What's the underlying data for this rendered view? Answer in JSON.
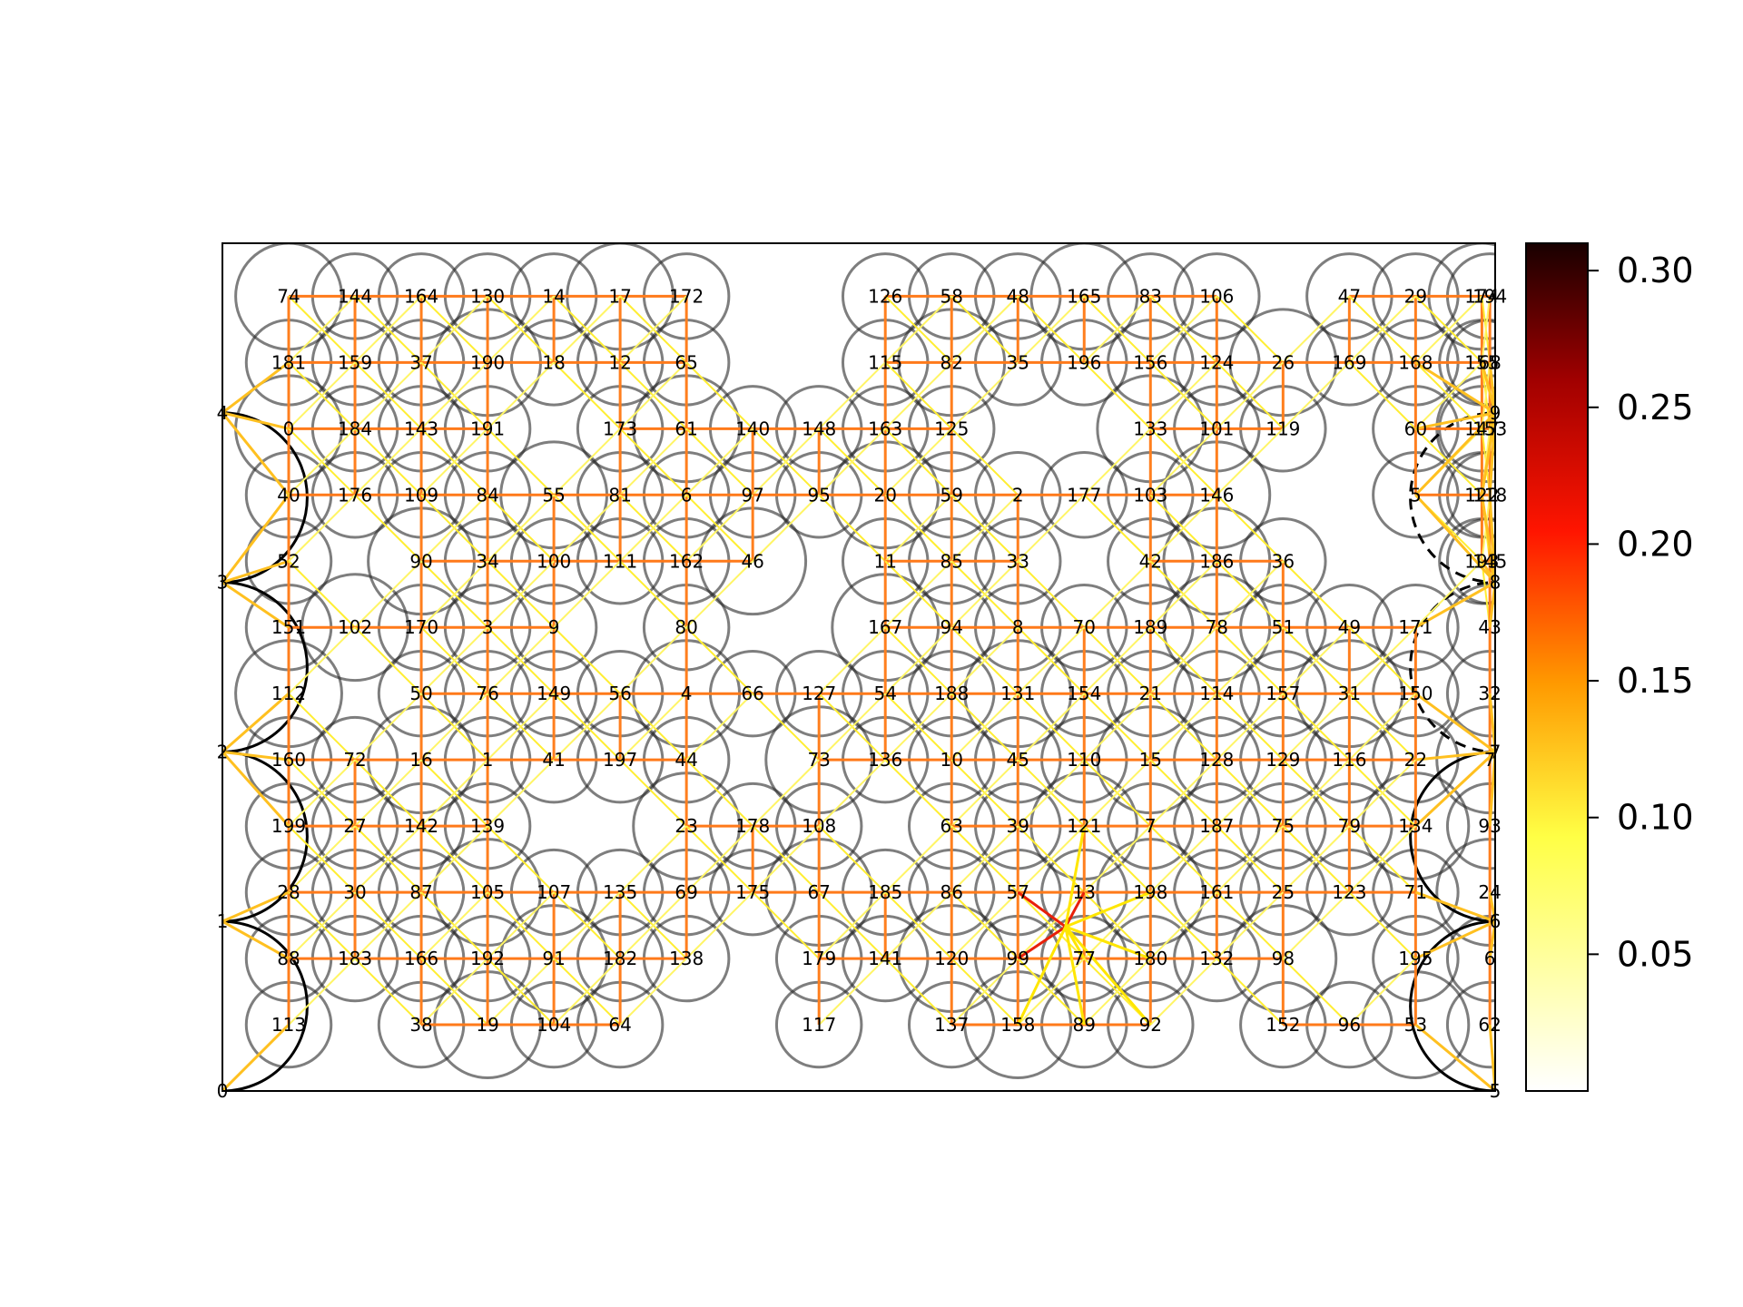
{
  "title": "",
  "colorbar": {
    "range": [
      0.0,
      0.31
    ],
    "ticks": [
      {
        "value": 0.05,
        "label": "0.05"
      },
      {
        "value": 0.1,
        "label": "0.10"
      },
      {
        "value": 0.15,
        "label": "0.15"
      },
      {
        "value": 0.2,
        "label": "0.20"
      },
      {
        "value": 0.25,
        "label": "0.25"
      },
      {
        "value": 0.3,
        "label": "0.30"
      }
    ],
    "colormap": "afmhot_r"
  },
  "grid": {
    "columns": [
      0.0,
      0.25,
      0.5,
      0.75,
      1.0,
      1.25,
      1.5,
      1.75,
      2.0,
      2.25,
      2.5,
      2.75,
      3.0,
      3.25,
      3.5,
      3.75,
      4.0,
      4.25,
      4.5,
      4.75
    ],
    "rows": [
      0.0,
      0.25,
      0.5,
      0.75,
      1.0,
      1.25,
      1.5,
      1.75,
      2.0,
      2.25,
      2.5,
      2.75,
      3.0
    ],
    "boundary_x_max": 4.8,
    "boundary_y_max": 3.2
  },
  "boundary_nodes": [
    {
      "id": "0",
      "x": 0.0,
      "y": 0.0
    },
    {
      "id": "1",
      "x": 0.0,
      "y": 0.64
    },
    {
      "id": "2",
      "x": 0.0,
      "y": 1.28
    },
    {
      "id": "3",
      "x": 0.0,
      "y": 1.92
    },
    {
      "id": "4",
      "x": 0.0,
      "y": 2.56
    },
    {
      "id": "5",
      "x": 4.8,
      "y": 0.0
    },
    {
      "id": "6",
      "x": 4.8,
      "y": 0.64
    },
    {
      "id": "7",
      "x": 4.8,
      "y": 1.28
    },
    {
      "id": "8",
      "x": 4.8,
      "y": 1.92
    },
    {
      "id": "9",
      "x": 4.8,
      "y": 2.56
    }
  ],
  "node_rows": [
    {
      "y": 3.0,
      "labels": [
        "74",
        "144",
        "164",
        "130",
        "14",
        "17",
        "172",
        "",
        "",
        "126",
        "58",
        "48",
        "165",
        "83",
        "106",
        "",
        "47",
        "29",
        "174",
        "194"
      ]
    },
    {
      "y": 2.75,
      "labels": [
        "181",
        "159",
        "37",
        "190",
        "18",
        "12",
        "65",
        "",
        "",
        "115",
        "82",
        "35",
        "196",
        "156",
        "124",
        "26",
        "169",
        "168",
        "155",
        "68"
      ]
    },
    {
      "y": 2.5,
      "labels": [
        "0",
        "184",
        "143",
        "191",
        "",
        "173",
        "61",
        "140",
        "148",
        "163",
        "125",
        "",
        "",
        "133",
        "101",
        "119",
        "",
        "60",
        "147",
        "153"
      ]
    },
    {
      "y": 2.25,
      "labels": [
        "40",
        "176",
        "109",
        "84",
        "55",
        "81",
        "6",
        "97",
        "95",
        "20",
        "59",
        "2",
        "177",
        "103",
        "146",
        "",
        "",
        "5",
        "122",
        "118"
      ]
    },
    {
      "y": 2.0,
      "labels": [
        "52",
        "",
        "90",
        "34",
        "100",
        "111",
        "162",
        "46",
        "",
        "11",
        "85",
        "33",
        "",
        "42",
        "186",
        "36",
        "",
        "",
        "193",
        "145"
      ]
    },
    {
      "y": 1.75,
      "labels": [
        "151",
        "102",
        "170",
        "3",
        "9",
        "",
        "80",
        "",
        "",
        "167",
        "94",
        "8",
        "70",
        "189",
        "78",
        "51",
        "49",
        "171",
        "",
        "43"
      ]
    },
    {
      "y": 1.5,
      "labels": [
        "112",
        "",
        "50",
        "76",
        "149",
        "56",
        "4",
        "66",
        "127",
        "54",
        "188",
        "131",
        "154",
        "21",
        "114",
        "157",
        "31",
        "150",
        "",
        "32"
      ]
    },
    {
      "y": 1.25,
      "labels": [
        "160",
        "72",
        "16",
        "1",
        "41",
        "197",
        "44",
        "",
        "73",
        "136",
        "10",
        "45",
        "110",
        "15",
        "128",
        "129",
        "116",
        "22",
        "",
        "7"
      ]
    },
    {
      "y": 1.0,
      "labels": [
        "199",
        "27",
        "142",
        "139",
        "",
        "",
        "23",
        "178",
        "108",
        "",
        "63",
        "39",
        "121",
        "7",
        "187",
        "75",
        "79",
        "134",
        "",
        "93"
      ]
    },
    {
      "y": 0.75,
      "labels": [
        "28",
        "30",
        "87",
        "105",
        "107",
        "135",
        "69",
        "175",
        "67",
        "185",
        "86",
        "57",
        "13",
        "198",
        "161",
        "25",
        "123",
        "71",
        "",
        "24"
      ]
    },
    {
      "y": 0.5,
      "labels": [
        "88",
        "183",
        "166",
        "192",
        "91",
        "182",
        "138",
        "",
        "179",
        "141",
        "120",
        "99",
        "77",
        "180",
        "132",
        "98",
        "",
        "195",
        "",
        "6"
      ]
    },
    {
      "y": 0.25,
      "labels": [
        "113",
        "",
        "38",
        "19",
        "104",
        "64",
        "",
        "",
        "117",
        "",
        "137",
        "158",
        "89",
        "92",
        "",
        "152",
        "96",
        "53",
        "",
        "62"
      ]
    }
  ]
}
